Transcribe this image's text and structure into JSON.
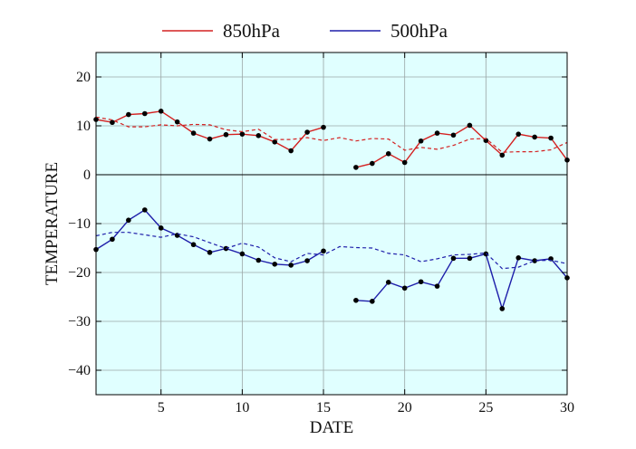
{
  "chart_data": {
    "type": "line",
    "xlabel": "DATE",
    "ylabel": "TEMPERATURE",
    "xlim": [
      1,
      30
    ],
    "ylim": [
      -45,
      25
    ],
    "xticks": [
      5,
      10,
      15,
      20,
      25,
      30
    ],
    "yticks": [
      20,
      10,
      0,
      -10,
      -20,
      -30,
      -40
    ],
    "grid": true,
    "zero_line": true,
    "legend_position": "top",
    "legend": [
      {
        "name": "850hPa",
        "color": "#d42020"
      },
      {
        "name": "500hPa",
        "color": "#1e1eaa"
      }
    ],
    "x": [
      1,
      2,
      3,
      4,
      5,
      6,
      7,
      8,
      9,
      10,
      11,
      12,
      13,
      14,
      15,
      16,
      17,
      18,
      19,
      20,
      21,
      22,
      23,
      24,
      25,
      26,
      27,
      28,
      29,
      30
    ],
    "series": [
      {
        "name": "850hPa",
        "color": "#d42020",
        "style": "solid",
        "markers": true,
        "values": [
          11.3,
          10.7,
          12.3,
          12.5,
          13.0,
          10.8,
          8.5,
          7.3,
          8.2,
          8.3,
          8.0,
          6.7,
          4.9,
          8.7,
          9.7,
          null,
          1.5,
          2.3,
          4.3,
          2.5,
          6.9,
          8.5,
          8.1,
          10.1,
          7.0,
          4.0,
          8.3,
          7.7,
          7.5,
          3.0
        ]
      },
      {
        "name": "850hPa normal",
        "color": "#d42020",
        "style": "dashed",
        "markers": false,
        "values": [
          11.8,
          11.2,
          9.8,
          9.8,
          10.2,
          10.0,
          10.3,
          10.2,
          9.2,
          8.8,
          9.3,
          7.2,
          7.2,
          7.6,
          7.0,
          7.6,
          6.9,
          7.4,
          7.3,
          5.0,
          5.6,
          5.2,
          6.0,
          7.3,
          7.4,
          4.6,
          4.7,
          4.7,
          5.1,
          6.6
        ]
      },
      {
        "name": "500hPa",
        "color": "#1e1eaa",
        "style": "solid",
        "markers": true,
        "values": [
          -15.3,
          -13.2,
          -9.3,
          -7.2,
          -10.9,
          -12.4,
          -14.3,
          -15.9,
          -15.1,
          -16.2,
          -17.5,
          -18.3,
          -18.5,
          -17.6,
          -15.6,
          null,
          -25.7,
          -25.9,
          -22.0,
          -23.2,
          -21.9,
          -22.8,
          -17.1,
          -17.1,
          -16.2,
          -27.4,
          -17.0,
          -17.6,
          -17.2,
          -21.1
        ]
      },
      {
        "name": "500hPa normal",
        "color": "#1e1eaa",
        "style": "dashed",
        "markers": false,
        "values": [
          -12.5,
          -11.8,
          -11.8,
          -12.3,
          -12.8,
          -12.1,
          -12.7,
          -13.9,
          -15.1,
          -14.0,
          -14.8,
          -17.0,
          -17.8,
          -16.1,
          -16.4,
          -14.7,
          -14.9,
          -15.0,
          -16.1,
          -16.4,
          -17.8,
          -17.2,
          -16.4,
          -16.3,
          -16.0,
          -19.2,
          -18.9,
          -17.6,
          -17.5,
          -18.2
        ]
      }
    ]
  }
}
